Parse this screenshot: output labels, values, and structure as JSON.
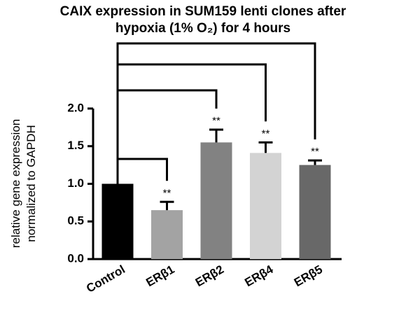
{
  "chart_data": {
    "type": "bar",
    "title": [
      "CAIX expression in SUM159 lenti clones after",
      "hypoxia (1% O₂) for 4 hours"
    ],
    "y_label": [
      "relative gene expression",
      "normalized to GAPDH"
    ],
    "categories": [
      "Control",
      "ERβ1",
      "ERβ2",
      "ERβ4",
      "ERβ5"
    ],
    "values": [
      1.0,
      0.65,
      1.55,
      1.41,
      1.25
    ],
    "errors": [
      null,
      0.11,
      0.17,
      0.14,
      0.06
    ],
    "significance": [
      null,
      "**",
      "**",
      "**",
      "**"
    ],
    "colors": [
      "#000000",
      "#a3a3a3",
      "#828282",
      "#d3d3d3",
      "#686868"
    ],
    "ylim": [
      0,
      2.0
    ],
    "yticks": [
      {
        "value": 0,
        "label": "0.0"
      },
      0.5,
      {
        "value": 1,
        "label": "1.0"
      },
      1.5,
      {
        "value": 2,
        "label": "2.0"
      }
    ]
  }
}
